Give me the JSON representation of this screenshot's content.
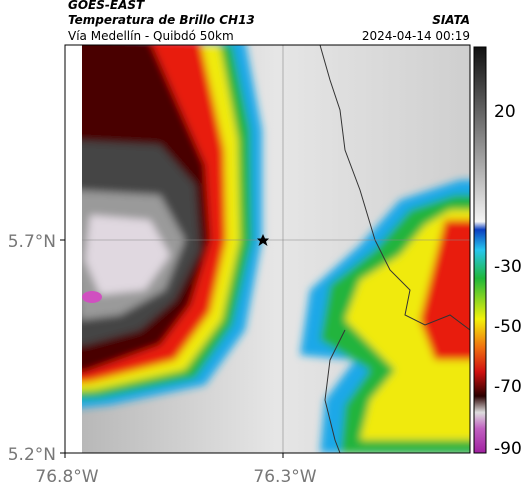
{
  "header": {
    "title": "GOES-EAST",
    "subtitle": "Temperatura de Brillo CH13",
    "caption": "Vía Medellín - Quibdó 50km",
    "source": "SIATA",
    "datetime": "2024-04-14 00:19"
  },
  "map": {
    "lat_labels": [
      "5.7°N",
      "5.2°N"
    ],
    "lon_labels": [
      "76.8°W",
      "76.3°W"
    ]
  },
  "colorbar": {
    "labels": [
      "20",
      "-30",
      "-50",
      "-70",
      "-90"
    ]
  }
}
